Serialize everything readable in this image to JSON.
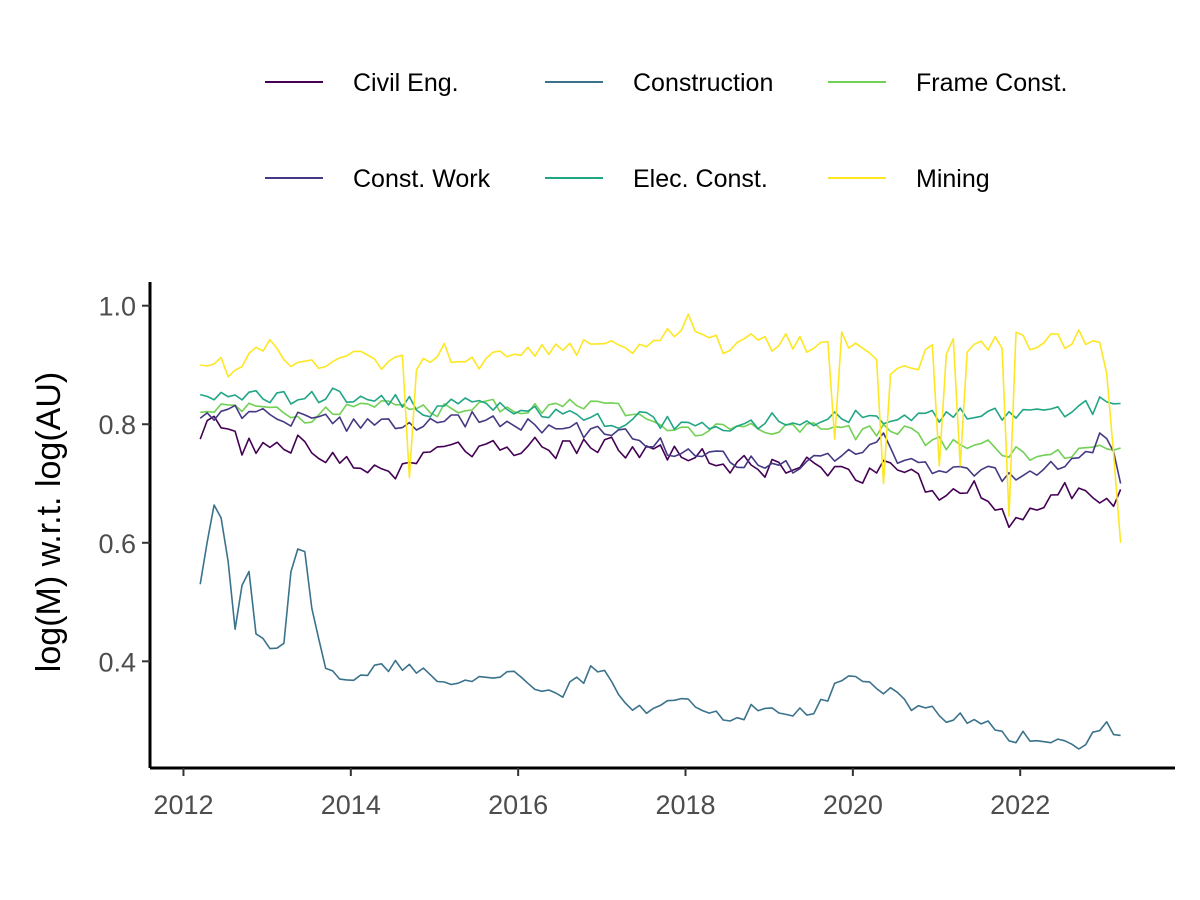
{
  "chart_data": {
    "type": "line",
    "title": "",
    "xlabel": "",
    "ylabel": "log(M) w.r.t. log(AU)",
    "xlim": [
      2011.6,
      2023.85
    ],
    "ylim": [
      0.22,
      1.04
    ],
    "x_ticks": [
      2012,
      2014,
      2016,
      2018,
      2020,
      2022
    ],
    "x_tick_labels": [
      "2012",
      "2014",
      "2016",
      "2018",
      "2020",
      "2022"
    ],
    "y_ticks": [
      0.4,
      0.6,
      0.8,
      1.0
    ],
    "y_tick_labels": [
      "0.4",
      "0.6",
      "0.8",
      "1.0"
    ],
    "grid": false,
    "legend_position": "top",
    "legend": [
      {
        "name": "Civil Eng.",
        "color": "#440154"
      },
      {
        "name": "Construction",
        "color": "#3b728c"
      },
      {
        "name": "Frame Const.",
        "color": "#73d056"
      },
      {
        "name": "Const. Work",
        "color": "#443a83"
      },
      {
        "name": "Elec. Const.",
        "color": "#21a685"
      },
      {
        "name": "Mining",
        "color": "#fde725"
      }
    ],
    "series": [
      {
        "name": "Civil Eng.",
        "color": "#440154",
        "x_start": 2012.2,
        "x_end": 2023.2,
        "keyframes": [
          [
            2012.2,
            0.775
          ],
          [
            2012.4,
            0.81
          ],
          [
            2012.7,
            0.76
          ],
          [
            2013,
            0.775
          ],
          [
            2013.5,
            0.76
          ],
          [
            2014,
            0.74
          ],
          [
            2014.7,
            0.72
          ],
          [
            2015,
            0.77
          ],
          [
            2015.5,
            0.755
          ],
          [
            2016,
            0.76
          ],
          [
            2016.5,
            0.76
          ],
          [
            2017,
            0.765
          ],
          [
            2017.5,
            0.755
          ],
          [
            2018,
            0.745
          ],
          [
            2018.5,
            0.735
          ],
          [
            2019,
            0.725
          ],
          [
            2019.5,
            0.73
          ],
          [
            2020,
            0.705
          ],
          [
            2020.4,
            0.74
          ],
          [
            2020.8,
            0.71
          ],
          [
            2021,
            0.665
          ],
          [
            2021.3,
            0.7
          ],
          [
            2021.6,
            0.675
          ],
          [
            2022,
            0.62
          ],
          [
            2022.4,
            0.7
          ],
          [
            2022.8,
            0.67
          ],
          [
            2023,
            0.66
          ],
          [
            2023.2,
            0.69
          ]
        ],
        "amplitude": 0.018,
        "seed": 3
      },
      {
        "name": "Construction",
        "color": "#3b728c",
        "x_start": 2012.2,
        "x_end": 2023.2,
        "keyframes": [
          [
            2012.2,
            0.53
          ],
          [
            2012.35,
            0.675
          ],
          [
            2012.5,
            0.62
          ],
          [
            2012.6,
            0.45
          ],
          [
            2012.75,
            0.585
          ],
          [
            2012.85,
            0.45
          ],
          [
            2013,
            0.42
          ],
          [
            2013.2,
            0.43
          ],
          [
            2013.3,
            0.585
          ],
          [
            2013.45,
            0.585
          ],
          [
            2013.55,
            0.47
          ],
          [
            2013.7,
            0.39
          ],
          [
            2014,
            0.37
          ],
          [
            2014.5,
            0.395
          ],
          [
            2015,
            0.37
          ],
          [
            2015.5,
            0.365
          ],
          [
            2016,
            0.375
          ],
          [
            2016.5,
            0.345
          ],
          [
            2017,
            0.395
          ],
          [
            2017.3,
            0.315
          ],
          [
            2018,
            0.33
          ],
          [
            2018.5,
            0.305
          ],
          [
            2019,
            0.325
          ],
          [
            2019.5,
            0.315
          ],
          [
            2020,
            0.38
          ],
          [
            2020.3,
            0.36
          ],
          [
            2020.6,
            0.33
          ],
          [
            2021,
            0.31
          ],
          [
            2021.5,
            0.295
          ],
          [
            2022,
            0.27
          ],
          [
            2022.5,
            0.27
          ],
          [
            2022.8,
            0.255
          ],
          [
            2023,
            0.3
          ],
          [
            2023.2,
            0.275
          ]
        ],
        "amplitude": 0.012,
        "seed": 11
      },
      {
        "name": "Frame Const.",
        "color": "#73d056",
        "x_start": 2012.2,
        "x_end": 2023.2,
        "keyframes": [
          [
            2012.2,
            0.82
          ],
          [
            2012.5,
            0.825
          ],
          [
            2013,
            0.835
          ],
          [
            2013.5,
            0.81
          ],
          [
            2014,
            0.83
          ],
          [
            2014.5,
            0.835
          ],
          [
            2015,
            0.82
          ],
          [
            2015.5,
            0.835
          ],
          [
            2016,
            0.825
          ],
          [
            2016.5,
            0.835
          ],
          [
            2017,
            0.83
          ],
          [
            2017.5,
            0.82
          ],
          [
            2018,
            0.785
          ],
          [
            2018.5,
            0.79
          ],
          [
            2019,
            0.79
          ],
          [
            2019.5,
            0.795
          ],
          [
            2020,
            0.785
          ],
          [
            2020.5,
            0.79
          ],
          [
            2021,
            0.77
          ],
          [
            2021.5,
            0.765
          ],
          [
            2022,
            0.75
          ],
          [
            2022.5,
            0.745
          ],
          [
            2023,
            0.765
          ],
          [
            2023.2,
            0.76
          ]
        ],
        "amplitude": 0.012,
        "seed": 5
      },
      {
        "name": "Const. Work",
        "color": "#443a83",
        "x_start": 2012.2,
        "x_end": 2023.2,
        "keyframes": [
          [
            2012.2,
            0.81
          ],
          [
            2012.5,
            0.82
          ],
          [
            2013,
            0.815
          ],
          [
            2013.5,
            0.805
          ],
          [
            2014,
            0.8
          ],
          [
            2014.5,
            0.8
          ],
          [
            2015,
            0.805
          ],
          [
            2015.5,
            0.81
          ],
          [
            2016,
            0.8
          ],
          [
            2016.5,
            0.795
          ],
          [
            2017,
            0.785
          ],
          [
            2017.5,
            0.775
          ],
          [
            2018,
            0.745
          ],
          [
            2018.5,
            0.745
          ],
          [
            2019,
            0.725
          ],
          [
            2019.5,
            0.735
          ],
          [
            2020,
            0.745
          ],
          [
            2020.3,
            0.785
          ],
          [
            2020.6,
            0.735
          ],
          [
            2021,
            0.725
          ],
          [
            2021.5,
            0.72
          ],
          [
            2022,
            0.705
          ],
          [
            2022.5,
            0.74
          ],
          [
            2022.8,
            0.745
          ],
          [
            2023,
            0.8
          ],
          [
            2023.2,
            0.7
          ]
        ],
        "amplitude": 0.014,
        "seed": 17
      },
      {
        "name": "Elec. Const.",
        "color": "#21a685",
        "x_start": 2012.2,
        "x_end": 2023.2,
        "keyframes": [
          [
            2012.2,
            0.85
          ],
          [
            2012.5,
            0.855
          ],
          [
            2013,
            0.845
          ],
          [
            2013.5,
            0.85
          ],
          [
            2014,
            0.845
          ],
          [
            2014.5,
            0.84
          ],
          [
            2015,
            0.825
          ],
          [
            2015.5,
            0.835
          ],
          [
            2016,
            0.815
          ],
          [
            2016.5,
            0.82
          ],
          [
            2017,
            0.805
          ],
          [
            2017.5,
            0.81
          ],
          [
            2018,
            0.795
          ],
          [
            2018.5,
            0.795
          ],
          [
            2019,
            0.805
          ],
          [
            2019.5,
            0.81
          ],
          [
            2020,
            0.81
          ],
          [
            2020.5,
            0.815
          ],
          [
            2021,
            0.815
          ],
          [
            2021.5,
            0.815
          ],
          [
            2022,
            0.825
          ],
          [
            2022.5,
            0.815
          ],
          [
            2023,
            0.835
          ],
          [
            2023.2,
            0.835
          ]
        ],
        "amplitude": 0.014,
        "seed": 23
      },
      {
        "name": "Mining",
        "color": "#fde725",
        "x_start": 2012.2,
        "x_end": 2023.2,
        "keyframes": [
          [
            2012.2,
            0.9
          ],
          [
            2012.5,
            0.895
          ],
          [
            2013,
            0.93
          ],
          [
            2013.5,
            0.9
          ],
          [
            2014,
            0.935
          ],
          [
            2014.4,
            0.895
          ],
          [
            2014.7,
            0.9
          ],
          [
            2015,
            0.925
          ],
          [
            2015.5,
            0.905
          ],
          [
            2016,
            0.925
          ],
          [
            2016.5,
            0.925
          ],
          [
            2017,
            0.945
          ],
          [
            2017.5,
            0.925
          ],
          [
            2017.95,
            0.975
          ],
          [
            2018.5,
            0.93
          ],
          [
            2019,
            0.94
          ],
          [
            2019.5,
            0.93
          ],
          [
            2020,
            0.945
          ],
          [
            2020.5,
            0.88
          ],
          [
            2021,
            0.93
          ],
          [
            2021.5,
            0.94
          ],
          [
            2022,
            0.94
          ],
          [
            2022.5,
            0.935
          ],
          [
            2023,
            0.95
          ],
          [
            2023.2,
            0.6
          ]
        ],
        "amplitude": 0.018,
        "seed": 31,
        "dips": [
          [
            2014.7,
            0.71
          ],
          [
            2019.75,
            0.775
          ],
          [
            2020.35,
            0.7
          ],
          [
            2021.05,
            0.73
          ],
          [
            2021.3,
            0.73
          ],
          [
            2021.85,
            0.645
          ]
        ]
      }
    ]
  }
}
